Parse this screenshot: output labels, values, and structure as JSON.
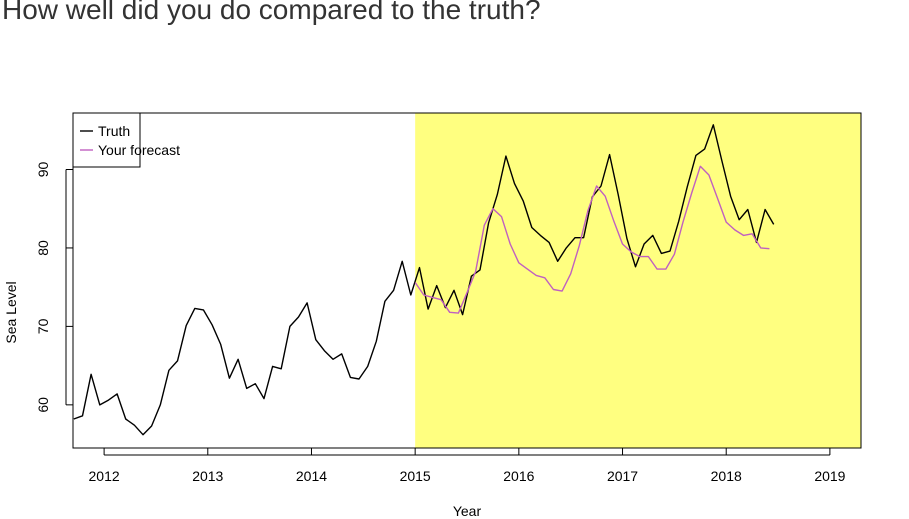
{
  "page": {
    "title": "How well did you do compared to the truth?"
  },
  "chart_data": {
    "type": "line",
    "title": "",
    "xlabel": "Year",
    "ylabel": "Sea Level",
    "xlim": [
      2011.7,
      2019.3
    ],
    "ylim": [
      54.5,
      97.2
    ],
    "x_ticks": [
      2012,
      2013,
      2014,
      2015,
      2016,
      2017,
      2018,
      2019
    ],
    "y_ticks": [
      60,
      70,
      80,
      90
    ],
    "highlight": {
      "x_from": 2015,
      "x_to": 2019.3,
      "color": "#ffff80"
    },
    "legend": {
      "position": "top-left"
    },
    "series": [
      {
        "name": "Truth",
        "color": "#000000",
        "x": [
          2011.708,
          2011.792,
          2011.875,
          2011.958,
          2012.042,
          2012.125,
          2012.208,
          2012.292,
          2012.375,
          2012.458,
          2012.542,
          2012.625,
          2012.708,
          2012.792,
          2012.875,
          2012.958,
          2013.042,
          2013.125,
          2013.208,
          2013.292,
          2013.375,
          2013.458,
          2013.542,
          2013.625,
          2013.708,
          2013.792,
          2013.875,
          2013.958,
          2014.042,
          2014.125,
          2014.208,
          2014.292,
          2014.375,
          2014.458,
          2014.542,
          2014.625,
          2014.708,
          2014.792,
          2014.875,
          2014.958,
          2015.042,
          2015.125,
          2015.208,
          2015.292,
          2015.375,
          2015.458,
          2015.542,
          2015.625,
          2015.708,
          2015.792,
          2015.875,
          2015.958,
          2016.042,
          2016.125,
          2016.208,
          2016.292,
          2016.375,
          2016.458,
          2016.542,
          2016.625,
          2016.708,
          2016.792,
          2016.875,
          2016.958,
          2017.042,
          2017.125,
          2017.208,
          2017.292,
          2017.375,
          2017.458,
          2017.542,
          2017.625,
          2017.708,
          2017.792,
          2017.875,
          2017.958,
          2018.042,
          2018.125,
          2018.208,
          2018.292,
          2018.375,
          2018.458
        ],
        "values": [
          58.2,
          58.6,
          63.9,
          60.0,
          60.6,
          61.4,
          58.2,
          57.4,
          56.2,
          57.3,
          60.0,
          64.4,
          65.6,
          70.1,
          72.3,
          72.1,
          70.2,
          67.7,
          63.4,
          65.8,
          62.1,
          62.7,
          60.8,
          64.9,
          64.6,
          70.0,
          71.2,
          73.0,
          68.3,
          66.9,
          65.8,
          66.5,
          63.5,
          63.3,
          64.9,
          68.1,
          73.2,
          74.6,
          78.3,
          74.0,
          77.5,
          72.2,
          75.2,
          72.4,
          74.6,
          71.5,
          76.4,
          77.2,
          83.2,
          86.8,
          91.7,
          88.2,
          86.0,
          82.6,
          81.6,
          80.7,
          78.3,
          80.0,
          81.3,
          81.3,
          86.5,
          87.9,
          91.9,
          86.8,
          81.2,
          77.6,
          80.5,
          81.6,
          79.3,
          79.6,
          83.4,
          87.8,
          91.8,
          92.6,
          95.7,
          91.1,
          86.6,
          83.6,
          84.9,
          80.7,
          84.9,
          83.0
        ]
      },
      {
        "name": "Your forecast",
        "color": "#c060c0",
        "x": [
          2015.0,
          2015.083,
          2015.167,
          2015.25,
          2015.333,
          2015.417,
          2015.5,
          2015.583,
          2015.667,
          2015.75,
          2015.833,
          2015.917,
          2016.0,
          2016.083,
          2016.167,
          2016.25,
          2016.333,
          2016.417,
          2016.5,
          2016.583,
          2016.667,
          2016.75,
          2016.833,
          2016.917,
          2017.0,
          2017.083,
          2017.167,
          2017.25,
          2017.333,
          2017.417,
          2017.5,
          2017.583,
          2017.667,
          2017.75,
          2017.833,
          2017.917,
          2018.0,
          2018.083,
          2018.167,
          2018.25,
          2018.333,
          2018.417
        ],
        "values": [
          75.6,
          74.0,
          73.7,
          73.4,
          71.8,
          71.7,
          74.3,
          77.0,
          82.9,
          85.0,
          84.0,
          80.5,
          78.1,
          77.3,
          76.5,
          76.2,
          74.7,
          74.5,
          76.7,
          80.3,
          84.8,
          87.9,
          86.6,
          83.4,
          80.5,
          79.5,
          78.9,
          78.9,
          77.3,
          77.3,
          79.2,
          83.3,
          87.0,
          90.4,
          89.3,
          86.3,
          83.3,
          82.3,
          81.6,
          81.8,
          80.0,
          79.9
        ]
      }
    ]
  }
}
